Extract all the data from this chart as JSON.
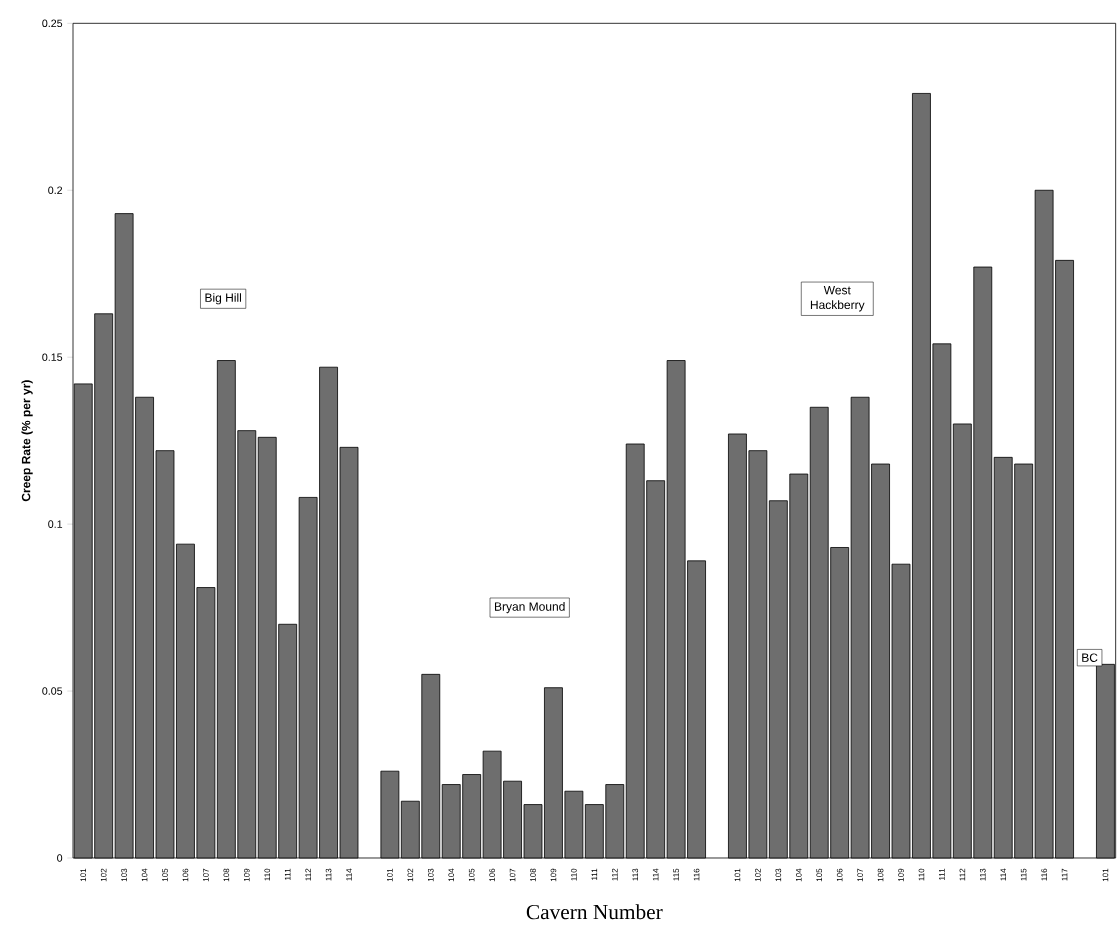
{
  "chart_data": {
    "type": "bar",
    "xlabel": "Cavern Number",
    "ylabel": "Creep Rate (% per yr)",
    "categories": [
      "101",
      "102",
      "103",
      "104",
      "105",
      "106",
      "107",
      "108",
      "109",
      "110",
      "111",
      "112",
      "113",
      "114",
      null,
      "101",
      "102",
      "103",
      "104",
      "105",
      "106",
      "107",
      "108",
      "109",
      "110",
      "111",
      "112",
      "113",
      "114",
      "115",
      "116",
      null,
      "101",
      "102",
      "103",
      "104",
      "105",
      "106",
      "107",
      "108",
      "109",
      "110",
      "111",
      "112",
      "113",
      "114",
      "115",
      "116",
      "117",
      null,
      "101"
    ],
    "values": [
      0.142,
      0.163,
      0.193,
      0.138,
      0.122,
      0.094,
      0.081,
      0.149,
      0.128,
      0.126,
      0.07,
      0.108,
      0.147,
      0.123,
      null,
      0.026,
      0.017,
      0.055,
      0.022,
      0.025,
      0.032,
      0.023,
      0.016,
      0.051,
      0.02,
      0.016,
      0.022,
      0.124,
      0.113,
      0.149,
      0.089,
      null,
      0.127,
      0.122,
      0.107,
      0.115,
      0.135,
      0.093,
      0.138,
      0.118,
      0.088,
      0.229,
      0.154,
      0.13,
      0.177,
      0.12,
      0.118,
      0.2,
      0.179,
      null,
      0.058
    ],
    "color": "#6e6e6e",
    "ylim": [
      0,
      0.25
    ],
    "yticks": [
      0,
      0.05,
      0.1,
      0.15,
      0.2,
      0.25
    ],
    "annotations": [
      "Big Hill",
      "Bryan Mound",
      "West Hackberry",
      "BC"
    ]
  }
}
